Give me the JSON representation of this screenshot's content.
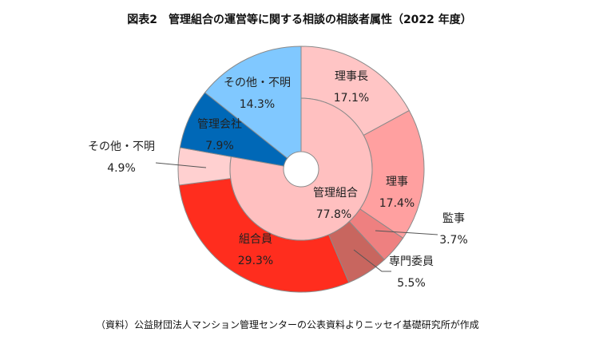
{
  "chart_data": {
    "type": "pie",
    "subtype": "sunburst-donut",
    "title": "図表2　管理組合の運営等に関する相談の相談者属性（2022 年度）",
    "unit": "%",
    "inner": [
      {
        "label": "管理組合",
        "value": 77.8,
        "display": "77.8%",
        "color": "#ffc0c0"
      },
      {
        "label": "管理会社",
        "value": 7.9,
        "display": "7.9%",
        "color": "#0068b7"
      },
      {
        "label": "その他・不明",
        "value": 14.3,
        "display": "14.3%",
        "color": "#80c8ff"
      }
    ],
    "outer": [
      {
        "label": "理事長",
        "value": 17.1,
        "display": "17.1%",
        "color": "#ffc5c5",
        "parent": "管理組合"
      },
      {
        "label": "理事",
        "value": 17.4,
        "display": "17.4%",
        "color": "#ffa0a0",
        "parent": "管理組合"
      },
      {
        "label": "監事",
        "value": 3.7,
        "display": "3.7%",
        "color": "#ee8080",
        "parent": "管理組合"
      },
      {
        "label": "専門委員",
        "value": 5.5,
        "display": "5.5%",
        "color": "#c8665f",
        "parent": "管理組合"
      },
      {
        "label": "組合員",
        "value": 29.3,
        "display": "29.3%",
        "color": "#ff2d1e",
        "parent": "管理組合"
      },
      {
        "label": "その他・不明",
        "value": 4.9,
        "display": "4.9%",
        "color": "#ffd0d0",
        "parent": "管理組合"
      },
      {
        "label": "管理会社",
        "value": 7.9,
        "display": "7.9%",
        "color": "#0068b7",
        "parent": "管理会社"
      },
      {
        "label": "その他・不明",
        "value": 14.3,
        "display": "14.3%",
        "color": "#80c8ff",
        "parent": "その他・不明"
      }
    ]
  },
  "source_note": "（資料）公益財団法人マンション管理センターの公表資料よりニッセイ基礎研究所が作成"
}
